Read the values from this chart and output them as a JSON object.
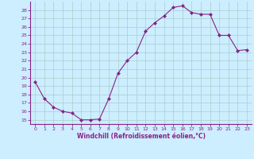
{
  "x": [
    0,
    1,
    2,
    3,
    4,
    5,
    6,
    7,
    8,
    9,
    10,
    11,
    12,
    13,
    14,
    15,
    16,
    17,
    18,
    19,
    20,
    21,
    22,
    23
  ],
  "y": [
    19.5,
    17.5,
    16.5,
    16.0,
    15.8,
    15.0,
    15.0,
    15.1,
    17.5,
    20.5,
    22.0,
    23.0,
    25.5,
    26.5,
    27.3,
    28.3,
    28.5,
    27.7,
    27.5,
    27.5,
    25.0,
    25.0,
    23.2,
    23.3
  ],
  "line_color": "#882288",
  "marker": "D",
  "marker_size": 2.0,
  "bg_color": "#cceeff",
  "grid_color": "#aacccc",
  "xlabel": "Windchill (Refroidissement éolien,°C)",
  "ylabel_ticks": [
    15,
    16,
    17,
    18,
    19,
    20,
    21,
    22,
    23,
    24,
    25,
    26,
    27,
    28
  ],
  "xlim": [
    -0.5,
    23.5
  ],
  "ylim": [
    14.5,
    29.0
  ],
  "axis_color": "#882288",
  "tick_color": "#882288",
  "spine_color": "#882288"
}
